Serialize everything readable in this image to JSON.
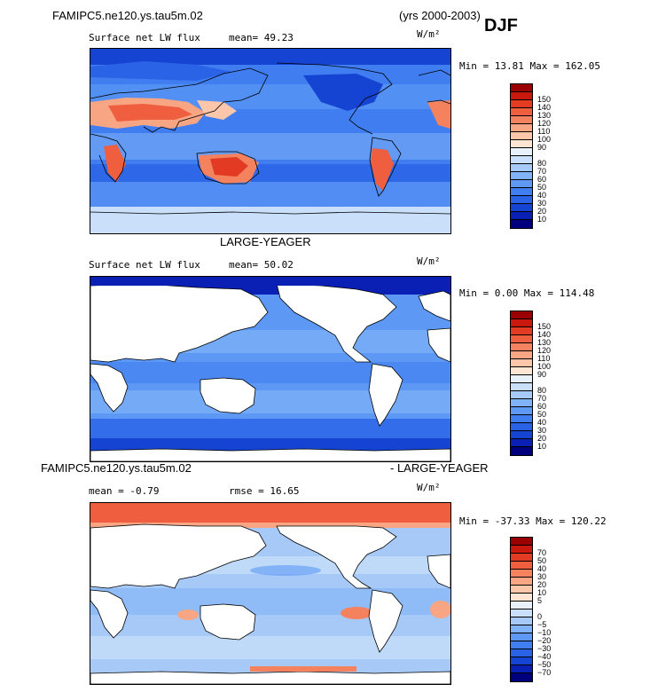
{
  "header": {
    "case_left": "FAMIPC5.ne120.ys.tau5m.02",
    "years": "(yrs 2000-2003)",
    "season": "DJF"
  },
  "panels": [
    {
      "title_center": "",
      "field_label": "Surface net LW flux",
      "stat_label": "mean=  49.23",
      "units": "W/m²",
      "minmax": "Min =  13.81 Max = 162.05",
      "colors": [
        "#00007f",
        "#0a1fb4",
        "#1644d2",
        "#2a63e6",
        "#3f7df0",
        "#5d98f5",
        "#80b2f7",
        "#a6c9f8",
        "#cadff9",
        "#e8f1fb",
        "#fde4d3",
        "#fbc6a9",
        "#f8a583",
        "#f4825f",
        "#ee5e3f",
        "#e33a23",
        "#c9190f",
        "#9b0000"
      ],
      "labels": [
        "150",
        "140",
        "130",
        "120",
        "110",
        "100",
        "90",
        "80",
        "70",
        "60",
        "50",
        "40",
        "30",
        "20",
        "10"
      ]
    },
    {
      "title_center": "LARGE-YEAGER",
      "field_label": "Surface net LW flux",
      "stat_label": "mean=  50.02",
      "units": "W/m²",
      "minmax": "Min =   0.00 Max = 114.48",
      "colors": [
        "#00007f",
        "#0a1fb4",
        "#1644d2",
        "#2a63e6",
        "#3f7df0",
        "#5d98f5",
        "#80b2f7",
        "#a6c9f8",
        "#cadff9",
        "#e8f1fb",
        "#fde4d3",
        "#fbc6a9",
        "#f8a583",
        "#f4825f",
        "#ee5e3f",
        "#e33a23",
        "#c9190f",
        "#9b0000"
      ],
      "labels": [
        "150",
        "140",
        "130",
        "120",
        "110",
        "100",
        "90",
        "80",
        "70",
        "60",
        "50",
        "40",
        "30",
        "20",
        "10"
      ]
    },
    {
      "title_left": "FAMIPC5.ne120.ys.tau5m.02",
      "title_right": "- LARGE-YEAGER",
      "field_label": "mean =  -0.79",
      "stat_label": "rmse =   16.65",
      "units": "W/m²",
      "minmax": "Min = -37.33 Max = 120.22",
      "colors": [
        "#00007f",
        "#0a1fb4",
        "#1644d2",
        "#2a63e6",
        "#3f7df0",
        "#5d98f5",
        "#80b2f7",
        "#a6c9f8",
        "#cadff9",
        "#e8f1fb",
        "#fde4d3",
        "#fbc6a9",
        "#f8a583",
        "#f4825f",
        "#ee5e3f",
        "#e33a23",
        "#c9190f",
        "#9b0000"
      ],
      "labels": [
        "70",
        "50",
        "40",
        "30",
        "20",
        "10",
        "5",
        "0",
        "−5",
        "−10",
        "−20",
        "−30",
        "−40",
        "−50",
        "−70"
      ]
    }
  ]
}
